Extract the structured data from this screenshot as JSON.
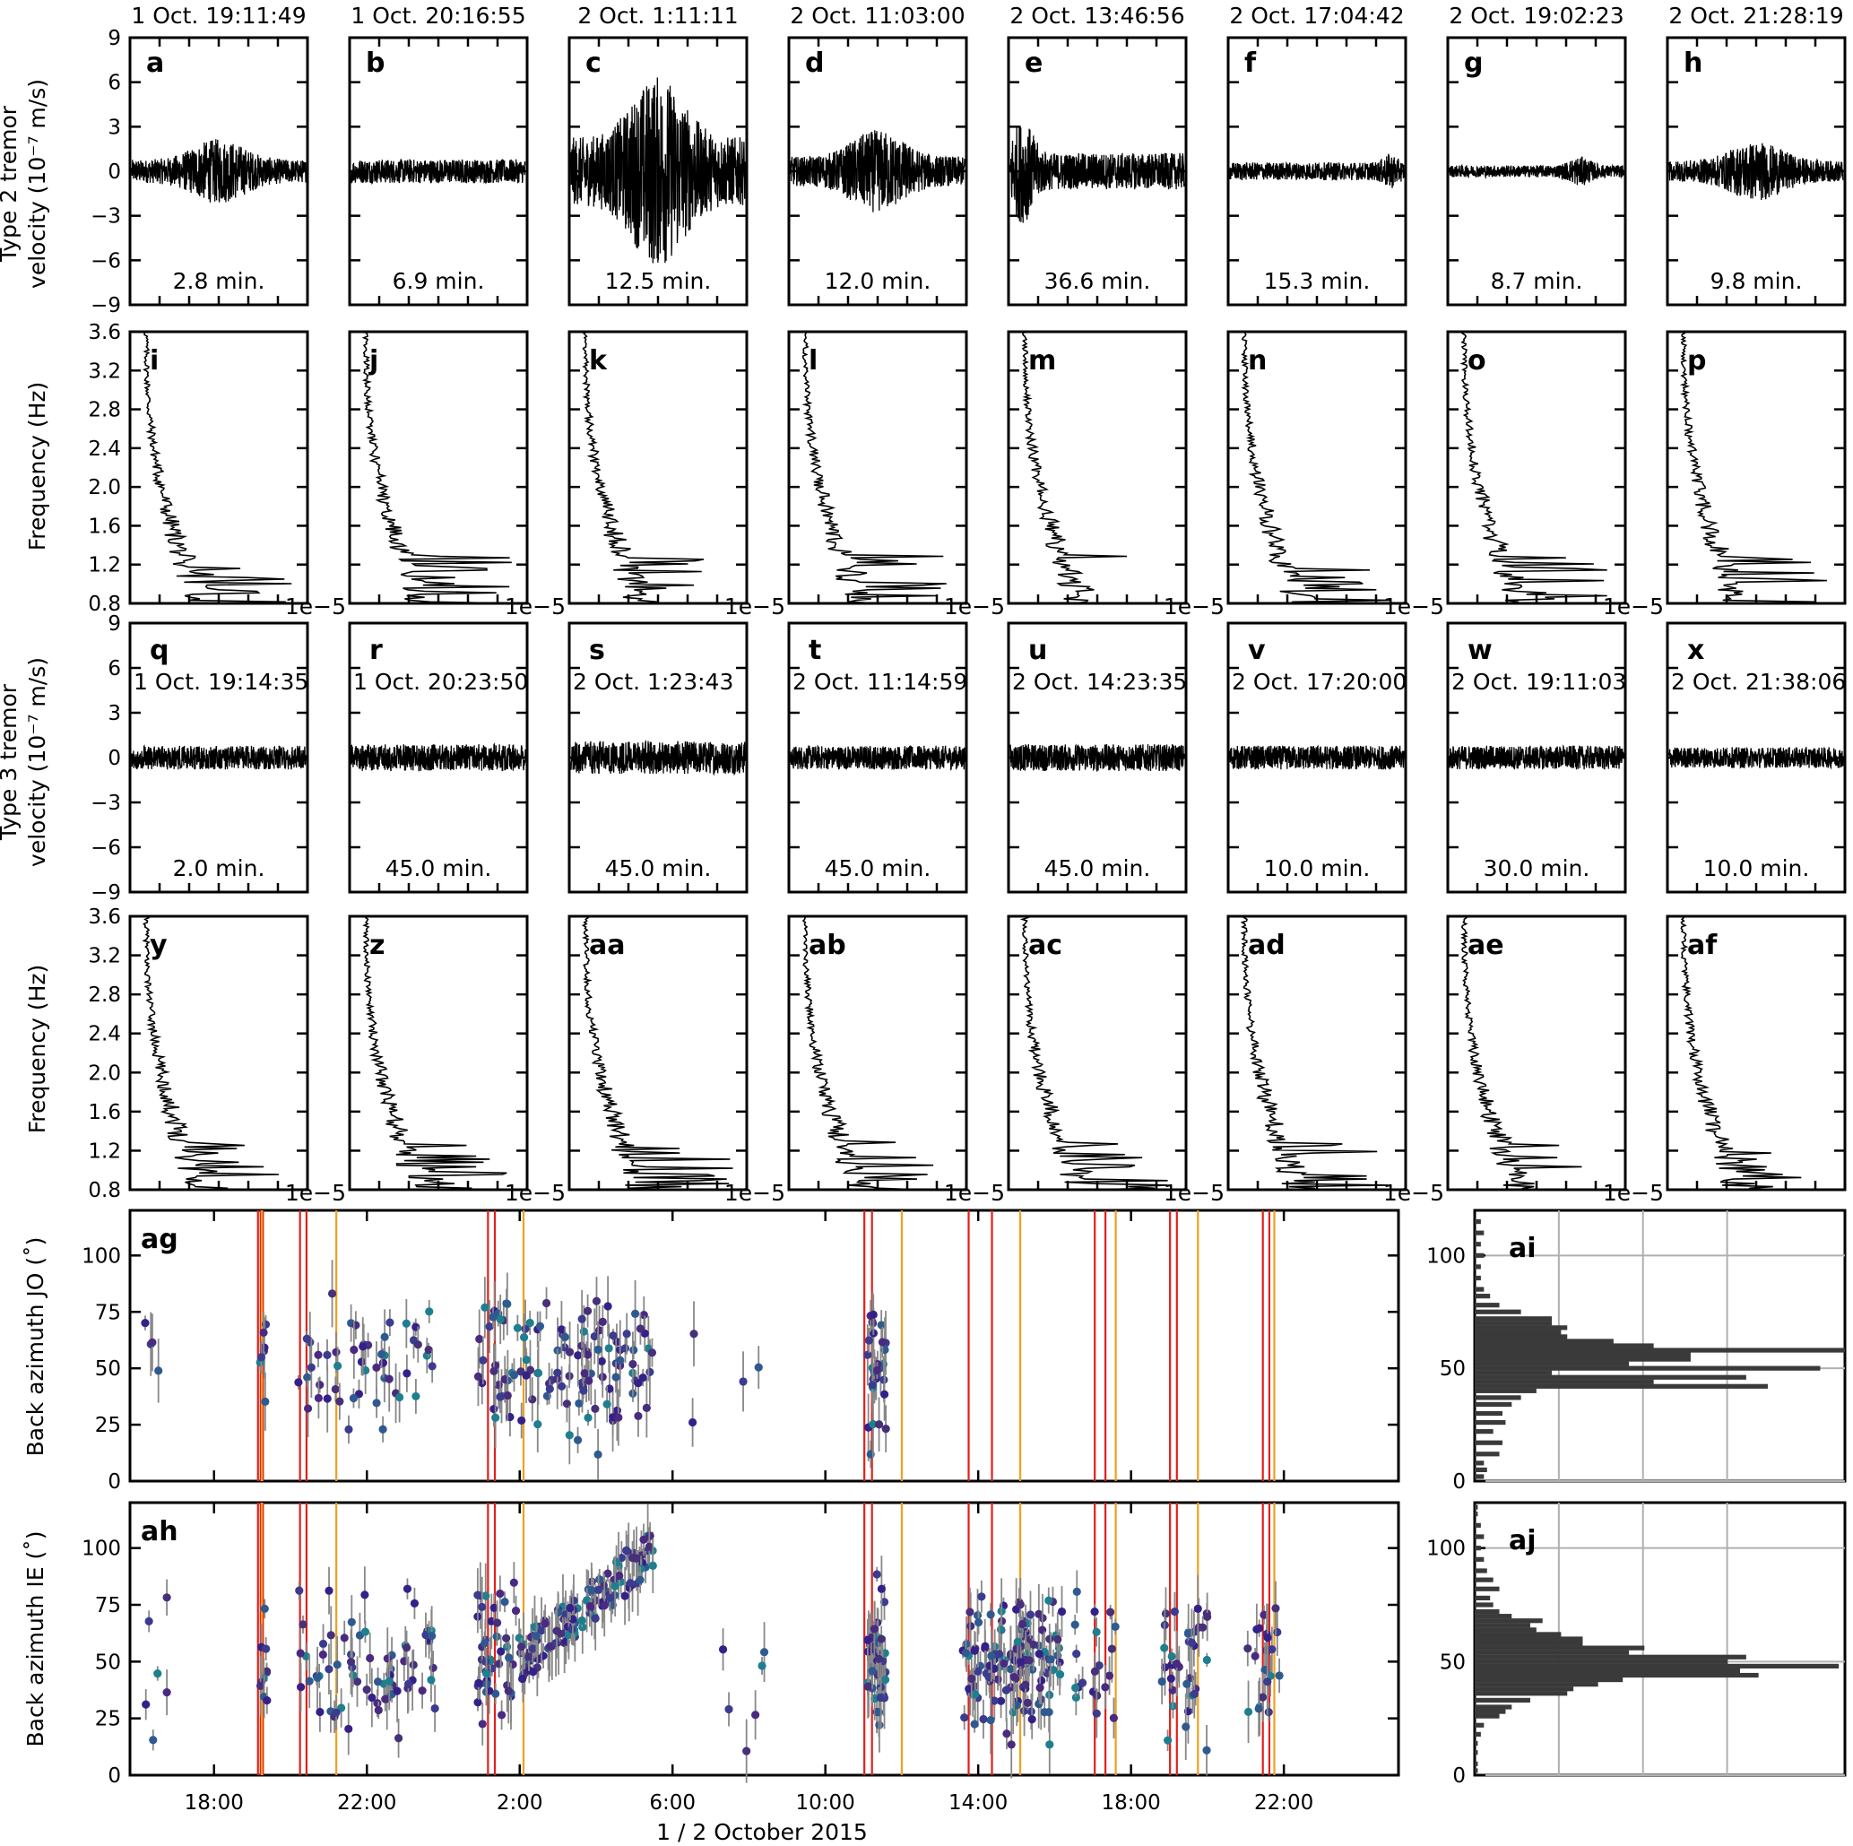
{
  "chart_data": {
    "type": "multi-panel",
    "type2_waveforms": {
      "ylabel": [
        "Type 2 tremor",
        "velocity (10⁻⁷ m/s)"
      ],
      "ylim": [
        -9,
        9
      ],
      "yticks": [
        "9",
        "6",
        "3",
        "0",
        "−3",
        "−6",
        "−9"
      ],
      "panels": [
        {
          "letter": "a",
          "time": "1 Oct. 19:11:49",
          "duration": "2.8 min.",
          "amp": 2.2,
          "env": "bell"
        },
        {
          "letter": "b",
          "time": "1 Oct. 20:16:55",
          "duration": "6.9 min.",
          "amp": 0.9,
          "env": "flat"
        },
        {
          "letter": "c",
          "time": "2 Oct. 1:11:11",
          "duration": "12.5 min.",
          "amp": 6.5,
          "env": "bell"
        },
        {
          "letter": "d",
          "time": "2 Oct. 11:03:00",
          "duration": "12.0 min.",
          "amp": 2.8,
          "env": "bell"
        },
        {
          "letter": "e",
          "time": "2 Oct. 13:46:56",
          "duration": "36.6 min.",
          "amp": 3.5,
          "env": "early"
        },
        {
          "letter": "f",
          "time": "2 Oct. 17:04:42",
          "duration": "15.3 min.",
          "amp": 1.2,
          "env": "late"
        },
        {
          "letter": "g",
          "time": "2 Oct. 19:02:23",
          "duration": "8.7 min.",
          "amp": 1.0,
          "env": "latebump"
        },
        {
          "letter": "h",
          "time": "2 Oct. 21:28:19",
          "duration": "9.8 min.",
          "amp": 2.0,
          "env": "bell"
        }
      ]
    },
    "type2_spectra": {
      "ylabel": "Frequency (Hz)",
      "ylim": [
        0.8,
        3.6
      ],
      "yticks": [
        "3.6",
        "3.2",
        "2.8",
        "2.4",
        "2.0",
        "1.6",
        "1.2",
        "0.8"
      ],
      "offset_label": "1e−5",
      "panels": [
        "i",
        "j",
        "k",
        "l",
        "m",
        "n",
        "o",
        "p"
      ]
    },
    "type3_waveforms": {
      "ylabel": [
        "Type 3 tremor",
        "velocity (10⁻⁷ m/s)"
      ],
      "ylim": [
        -9,
        9
      ],
      "yticks": [
        "9",
        "6",
        "3",
        "0",
        "−3",
        "−6",
        "−9"
      ],
      "panels": [
        {
          "letter": "q",
          "time": "1 Oct. 19:14:35",
          "duration": "2.0 min.",
          "amp": 0.8
        },
        {
          "letter": "r",
          "time": "1 Oct. 20:23:50",
          "duration": "45.0 min.",
          "amp": 0.9
        },
        {
          "letter": "s",
          "time": "2 Oct. 1:23:43",
          "duration": "45.0 min.",
          "amp": 1.1
        },
        {
          "letter": "t",
          "time": "2 Oct. 11:14:59",
          "duration": "45.0 min.",
          "amp": 0.8
        },
        {
          "letter": "u",
          "time": "2 Oct. 14:23:35",
          "duration": "45.0 min.",
          "amp": 0.9
        },
        {
          "letter": "v",
          "time": "2 Oct. 17:20:00",
          "duration": "10.0 min.",
          "amp": 0.8
        },
        {
          "letter": "w",
          "time": "2 Oct. 19:11:03",
          "duration": "30.0 min.",
          "amp": 0.8
        },
        {
          "letter": "x",
          "time": "2 Oct. 21:38:06",
          "duration": "10.0 min.",
          "amp": 0.7
        }
      ]
    },
    "type3_spectra": {
      "ylabel": "Frequency (Hz)",
      "ylim": [
        0.8,
        3.6
      ],
      "yticks": [
        "3.6",
        "3.2",
        "2.8",
        "2.4",
        "2.0",
        "1.6",
        "1.2",
        "0.8"
      ],
      "offset_label": "1e−5",
      "panels": [
        "y",
        "z",
        "aa",
        "ab",
        "ac",
        "ad",
        "ae",
        "af"
      ]
    },
    "backazimuth": {
      "xlabel": "1 / 2 October 2015",
      "xticks": [
        "18:00",
        "22:00",
        "2:00",
        "6:00",
        "10:00",
        "14:00",
        "18:00",
        "22:00"
      ],
      "xtick_hours": [
        18,
        22,
        26,
        30,
        34,
        38,
        42,
        46
      ],
      "xlim_hours": [
        15.8,
        49.0
      ],
      "yticks": [
        "0",
        "25",
        "50",
        "75",
        "100"
      ],
      "ylim": [
        0,
        120
      ],
      "red_lines_hours": [
        19.15,
        19.22,
        19.28,
        20.25,
        20.42,
        25.17,
        25.35,
        35.02,
        35.22,
        37.75,
        38.36,
        41.05,
        41.33,
        43.02,
        43.2,
        45.45,
        45.62
      ],
      "orange_lines_hours": [
        19.25,
        21.2,
        26.1,
        36.0,
        39.1,
        41.6,
        43.75,
        45.75
      ],
      "panels": [
        {
          "letter": "ag",
          "ylabel": "Back azimuth JO (˚)",
          "station": "JO"
        },
        {
          "letter": "ah",
          "ylabel": "Back azimuth IE (˚)",
          "station": "IE"
        }
      ]
    },
    "histograms": {
      "yticks": [
        "0",
        "50",
        "100"
      ],
      "ylim": [
        0,
        120
      ],
      "panels": [
        {
          "letter": "ai",
          "bins": [
            [
              2,
              3
            ],
            [
              5,
              4
            ],
            [
              8,
              3
            ],
            [
              12,
              8
            ],
            [
              17,
              9
            ],
            [
              22,
              6
            ],
            [
              26,
              10
            ],
            [
              30,
              9
            ],
            [
              34,
              12
            ],
            [
              37,
              15
            ],
            [
              40,
              20
            ],
            [
              42,
              95
            ],
            [
              44,
              58
            ],
            [
              46,
              88
            ],
            [
              48,
              25
            ],
            [
              50,
              112
            ],
            [
              52,
              50
            ],
            [
              54,
              70
            ],
            [
              56,
              70
            ],
            [
              58,
              120
            ],
            [
              60,
              58
            ],
            [
              62,
              45
            ],
            [
              64,
              30
            ],
            [
              66,
              28
            ],
            [
              68,
              30
            ],
            [
              70,
              25
            ],
            [
              72,
              25
            ],
            [
              75,
              15
            ],
            [
              78,
              8
            ],
            [
              82,
              5
            ],
            [
              85,
              3
            ],
            [
              90,
              2
            ],
            [
              95,
              2
            ],
            [
              100,
              3
            ],
            [
              105,
              2
            ],
            [
              110,
              3
            ],
            [
              115,
              2
            ]
          ]
        },
        {
          "letter": "aj",
          "bins": [
            [
              2,
              1
            ],
            [
              5,
              1
            ],
            [
              10,
              1
            ],
            [
              14,
              1
            ],
            [
              18,
              2
            ],
            [
              22,
              3
            ],
            [
              26,
              8
            ],
            [
              28,
              10
            ],
            [
              30,
              12
            ],
            [
              33,
              18
            ],
            [
              36,
              30
            ],
            [
              38,
              32
            ],
            [
              40,
              40
            ],
            [
              42,
              48
            ],
            [
              44,
              92
            ],
            [
              46,
              86
            ],
            [
              48,
              118
            ],
            [
              50,
              82
            ],
            [
              52,
              88
            ],
            [
              54,
              50
            ],
            [
              56,
              55
            ],
            [
              58,
              35
            ],
            [
              60,
              35
            ],
            [
              62,
              28
            ],
            [
              64,
              20
            ],
            [
              66,
              18
            ],
            [
              68,
              22
            ],
            [
              70,
              12
            ],
            [
              72,
              8
            ],
            [
              75,
              6
            ],
            [
              78,
              5
            ],
            [
              82,
              8
            ],
            [
              86,
              6
            ],
            [
              90,
              4
            ],
            [
              95,
              3
            ],
            [
              100,
              2
            ],
            [
              105,
              3
            ],
            [
              110,
              2
            ],
            [
              115,
              1
            ],
            [
              118,
              1
            ]
          ]
        }
      ]
    }
  }
}
